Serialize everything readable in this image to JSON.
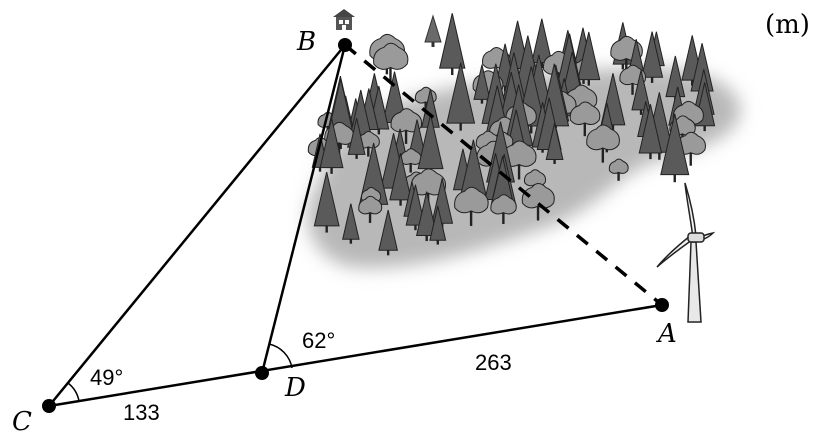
{
  "unit": "(m)",
  "points": {
    "A": "A",
    "B": "B",
    "C": "C",
    "D": "D"
  },
  "angles": {
    "C": "49°",
    "D": "62°"
  },
  "lengths": {
    "CD": "133",
    "DA": "263"
  },
  "colors": {
    "line": "#000000",
    "tree_dark": "#5a5a5a",
    "tree_light": "#9a9a9a",
    "forest_shadow": "#b5b5b5"
  },
  "icons": [
    "house-icon",
    "tree-icon",
    "wind-turbine-icon",
    "forest-illustration"
  ]
}
